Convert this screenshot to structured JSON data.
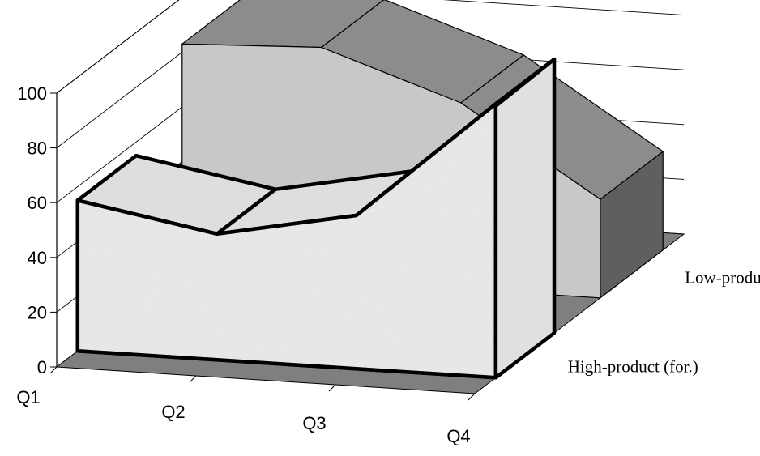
{
  "chart_data": {
    "type": "area",
    "subtype": "3d-area",
    "categories": [
      "Q1",
      "Q2",
      "Q3",
      "Q4"
    ],
    "series": [
      {
        "name": "Low-product. (for)",
        "values": [
          83,
          85,
          68,
          36
        ],
        "color": "#c8c8c8"
      },
      {
        "name": "High-product (for.)",
        "values": [
          55,
          46,
          56,
          100
        ],
        "color": "#e6e6e6"
      }
    ],
    "y_ticks": [
      "0",
      "20",
      "40",
      "60",
      "80",
      "100"
    ],
    "ylim": [
      0,
      100
    ],
    "grid": true,
    "title": "",
    "xlabel": "",
    "ylabel": ""
  }
}
